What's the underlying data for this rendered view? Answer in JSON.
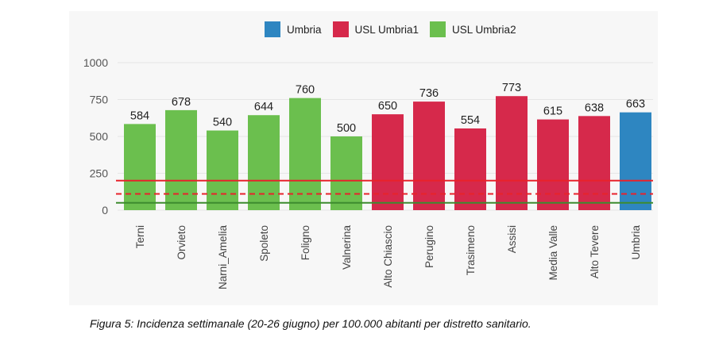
{
  "chart_data": {
    "type": "bar",
    "legend": [
      {
        "name": "Umbria",
        "color": "#2E86C1"
      },
      {
        "name": "USL Umbria1",
        "color": "#D6294B"
      },
      {
        "name": "USL Umbria2",
        "color": "#6BBF4E"
      }
    ],
    "categories": [
      "Terni",
      "Orvieto",
      "Narni_Amelia",
      "Spoleto",
      "Foligno",
      "Valnerina",
      "Alto Chiascio",
      "Perugino",
      "Trasimeno",
      "Assisi",
      "Media Valle",
      "Alto Tevere",
      "Umbria"
    ],
    "values": [
      584,
      678,
      540,
      644,
      760,
      500,
      650,
      736,
      554,
      773,
      615,
      638,
      663
    ],
    "groups": [
      "USL Umbria2",
      "USL Umbria2",
      "USL Umbria2",
      "USL Umbria2",
      "USL Umbria2",
      "USL Umbria2",
      "USL Umbria1",
      "USL Umbria1",
      "USL Umbria1",
      "USL Umbria1",
      "USL Umbria1",
      "USL Umbria1",
      "Umbria"
    ],
    "ylim": [
      0,
      1000
    ],
    "yticks": [
      "0",
      "250",
      "500",
      "750",
      "1000"
    ],
    "reference_lines": [
      {
        "value": 200,
        "color": "#E8222B",
        "style": "solid"
      },
      {
        "value": 110,
        "color": "#E8222B",
        "style": "dashed"
      },
      {
        "value": 50,
        "color": "#3D8B2F",
        "style": "solid"
      }
    ],
    "caption": "Figura 5: Incidenza settimanale (20-26 giugno) per 100.000 abitanti per distretto sanitario."
  }
}
